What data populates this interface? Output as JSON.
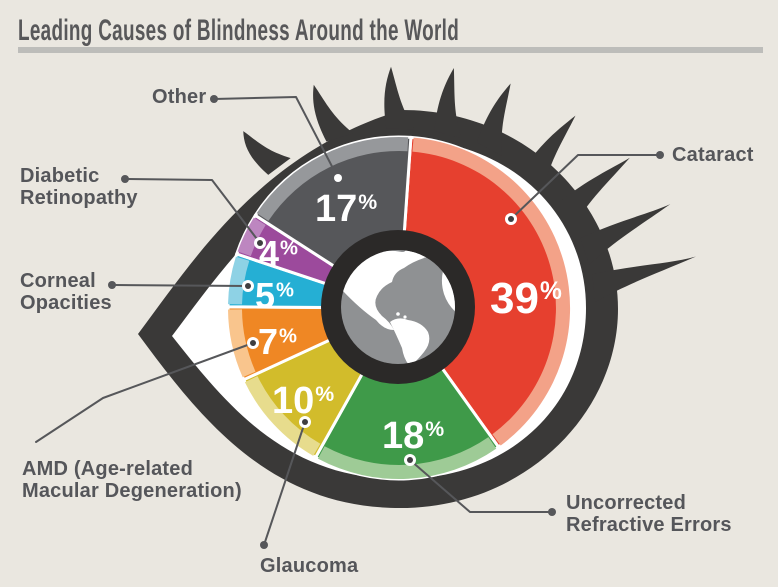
{
  "title": "Leading Causes of Blindness Around the World",
  "background_color": "#eae7e0",
  "accent_colors": {
    "title_text": "#58585a",
    "title_underline": "#bdbdba",
    "eye_outline": "#3a3938",
    "sclera": "#ffffff",
    "pupil_ring": "#2b2928",
    "globe_sphere": "#8f9193",
    "globe_land": "#ffffff",
    "leader_line": "#56575a",
    "callout_text": "#55565a"
  },
  "chart_data": {
    "type": "pie",
    "title": "Leading Causes of Blindness Around the World",
    "unit": "%",
    "direction": "clockwise",
    "start_angle_deg": 4,
    "legend_position": "callouts-around",
    "center_icon": "globe",
    "categories": [
      "Cataract",
      "Uncorrected Refractive Errors",
      "Glaucoma",
      "AMD (Age-related Macular Degeneration)",
      "Corneal Opacities",
      "Diabetic Retinopathy",
      "Other"
    ],
    "values": [
      39,
      18,
      10,
      7,
      5,
      4,
      17
    ],
    "slice_colors": [
      "#e6402f",
      "#3f9a49",
      "#d2bc2b",
      "#ef8724",
      "#25afd4",
      "#9c4a9c",
      "#56575a"
    ],
    "rim_colors": [
      "#f3a288",
      "#9ecb96",
      "#e7dc8d",
      "#f9c58d",
      "#8ed2e5",
      "#bd86c0",
      "#96989b"
    ]
  },
  "callouts": {
    "cataract": {
      "label": "Cataract"
    },
    "other": {
      "label": "Other"
    },
    "diabetic": {
      "line1": "Diabetic",
      "line2": "Retinopathy"
    },
    "corneal": {
      "line1": "Corneal",
      "line2": "Opacities"
    },
    "amd": {
      "line1": "AMD (Age-related",
      "line2": "Macular Degeneration)"
    },
    "glaucoma": {
      "label": "Glaucoma"
    },
    "uncorrected": {
      "line1": "Uncorrected",
      "line2": "Refractive Errors"
    }
  }
}
